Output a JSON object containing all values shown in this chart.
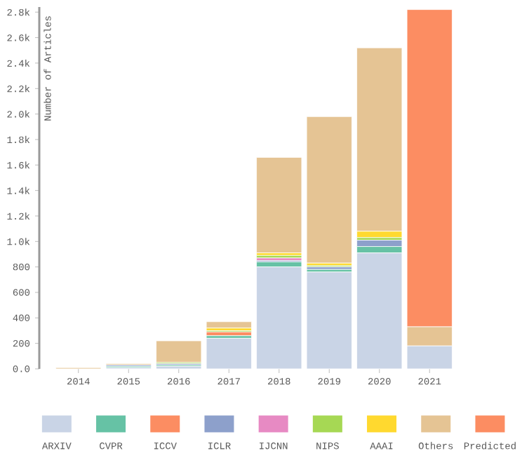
{
  "chart_data": {
    "type": "bar",
    "stacked": true,
    "ylabel": "Number of Articles",
    "categories": [
      "2014",
      "2015",
      "2016",
      "2017",
      "2018",
      "2019",
      "2020",
      "2021"
    ],
    "series": [
      {
        "name": "ARXIV",
        "color": "#c9d4e6",
        "values": [
          0,
          10,
          20,
          240,
          800,
          760,
          910,
          180
        ]
      },
      {
        "name": "CVPR",
        "color": "#66c2a5",
        "values": [
          0,
          10,
          10,
          20,
          40,
          20,
          50,
          0
        ]
      },
      {
        "name": "ICCV",
        "color": "#fc8d62",
        "values": [
          0,
          0,
          0,
          30,
          0,
          0,
          0,
          0
        ]
      },
      {
        "name": "ICLR",
        "color": "#8da0cb",
        "values": [
          0,
          10,
          10,
          0,
          10,
          20,
          50,
          0
        ]
      },
      {
        "name": "IJCNN",
        "color": "#e78ac3",
        "values": [
          0,
          0,
          0,
          0,
          20,
          0,
          0,
          0
        ]
      },
      {
        "name": "NIPS",
        "color": "#a6d854",
        "values": [
          0,
          0,
          10,
          10,
          20,
          10,
          20,
          0
        ]
      },
      {
        "name": "AAAI",
        "color": "#ffd92f",
        "values": [
          0,
          0,
          0,
          20,
          20,
          20,
          50,
          0
        ]
      },
      {
        "name": "Others",
        "color": "#e5c494",
        "values": [
          10,
          10,
          170,
          50,
          750,
          1150,
          1440,
          150
        ]
      },
      {
        "name": "Predicted",
        "color": "#fc8d62",
        "values": [
          0,
          0,
          0,
          0,
          0,
          0,
          0,
          2490
        ]
      }
    ],
    "ylim": [
      0,
      2840
    ],
    "yticks": [
      {
        "value": 0,
        "label": "0.0"
      },
      200,
      400,
      600,
      800,
      {
        "value": 1000,
        "label": "1.0k"
      },
      {
        "value": 1200,
        "label": "1.2k"
      },
      {
        "value": 1400,
        "label": "1.4k"
      },
      {
        "value": 1600,
        "label": "1.6k"
      },
      {
        "value": 1800,
        "label": "1.8k"
      },
      {
        "value": 2000,
        "label": "2.0k"
      },
      {
        "value": 2200,
        "label": "2.2k"
      },
      {
        "value": 2400,
        "label": "2.4k"
      },
      {
        "value": 2600,
        "label": "2.6k"
      },
      {
        "value": 2800,
        "label": "2.8k"
      }
    ],
    "grid": false,
    "legend": "bottom"
  }
}
